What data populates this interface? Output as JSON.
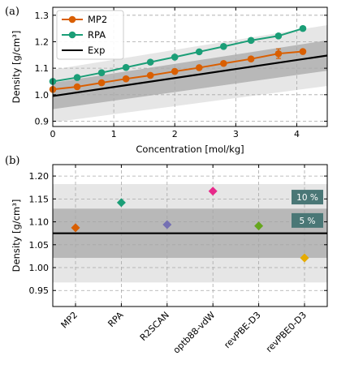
{
  "chart_data": [
    {
      "panel_label": "(a)",
      "type": "line",
      "xlabel": "Concentration [mol/kg]",
      "ylabel": "Density [g/cm³]",
      "xlim": [
        0,
        4.5
      ],
      "ylim": [
        0.88,
        1.33
      ],
      "xticks": [
        "0",
        "1",
        "2",
        "3",
        "4"
      ],
      "yticks": [
        "0.9",
        "1.0",
        "1.1",
        "1.2",
        "1.3"
      ],
      "grid": true,
      "legend": "top-left",
      "series": [
        {
          "name": "MP2",
          "color": "#d95f02",
          "marker": "circle",
          "x": [
            0.0,
            0.4,
            0.8,
            1.2,
            1.6,
            2.0,
            2.4,
            2.8,
            3.25,
            3.7,
            4.1
          ],
          "y": [
            1.02,
            1.03,
            1.045,
            1.06,
            1.073,
            1.088,
            1.102,
            1.118,
            1.135,
            1.155,
            1.163
          ],
          "yerr": [
            0,
            0,
            0,
            0,
            0,
            0,
            0,
            0,
            0,
            0.018,
            0
          ]
        },
        {
          "name": "RPA",
          "color": "#1b9e77",
          "marker": "circle",
          "x": [
            0.0,
            0.4,
            0.8,
            1.2,
            1.6,
            2.0,
            2.4,
            2.8,
            3.25,
            3.7,
            4.1
          ],
          "y": [
            1.05,
            1.065,
            1.083,
            1.103,
            1.123,
            1.142,
            1.162,
            1.182,
            1.205,
            1.222,
            1.25
          ],
          "yerr": [
            0,
            0,
            0,
            0,
            0,
            0,
            0,
            0,
            0,
            0,
            0
          ]
        },
        {
          "name": "Exp",
          "color": "#000000",
          "marker": "none",
          "x": [
            0.0,
            4.5
          ],
          "y": [
            0.995,
            1.148
          ],
          "bands_pct": [
            5,
            10
          ]
        }
      ]
    },
    {
      "panel_label": "(b)",
      "type": "scatter",
      "ylabel": "Density [g/cm³]",
      "ylim": [
        0.915,
        1.225
      ],
      "yticks": [
        "0.95",
        "1.00",
        "1.05",
        "1.10",
        "1.15",
        "1.20"
      ],
      "categories": [
        "MP2",
        "RPA",
        "R2SCAN",
        "optb88-vdW",
        "revPBE-D3",
        "revPBE0-D3"
      ],
      "values": [
        1.087,
        1.142,
        1.094,
        1.167,
        1.091,
        1.021
      ],
      "point_colors": [
        "#d95f02",
        "#1b9e77",
        "#7570b3",
        "#e7298a",
        "#66a61e",
        "#e6ab02"
      ],
      "marker": "diamond",
      "exp_value": 1.075,
      "bands_pct": [
        5,
        10
      ],
      "band_labels": [
        "10 %",
        "5 %"
      ],
      "grid": true
    }
  ]
}
